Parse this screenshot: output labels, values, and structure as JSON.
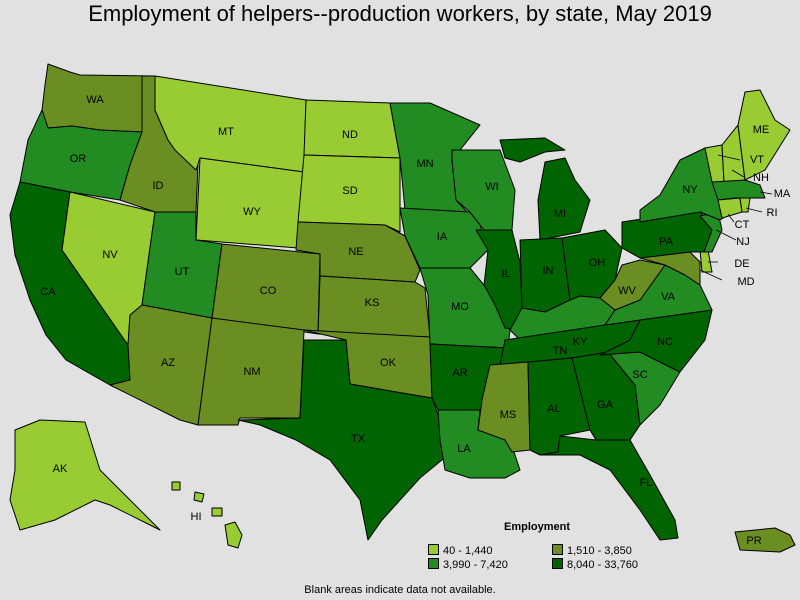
{
  "title": "Employment of helpers--production workers, by state, May 2019",
  "legend": {
    "title": "Employment",
    "classes": [
      {
        "label": "40 - 1,440",
        "color": "#99cc33"
      },
      {
        "label": "1,510 - 3,850",
        "color": "#6b8e23"
      },
      {
        "label": "3,990 - 7,420",
        "color": "#228b22"
      },
      {
        "label": "8,040 - 33,760",
        "color": "#006400"
      }
    ]
  },
  "footnote": "Blank areas indicate data not available.",
  "states": [
    {
      "code": "WA",
      "class": 1
    },
    {
      "code": "OR",
      "class": 2
    },
    {
      "code": "CA",
      "class": 3
    },
    {
      "code": "NV",
      "class": 0
    },
    {
      "code": "ID",
      "class": 1
    },
    {
      "code": "MT",
      "class": 0
    },
    {
      "code": "WY",
      "class": 0
    },
    {
      "code": "UT",
      "class": 2
    },
    {
      "code": "AZ",
      "class": 1
    },
    {
      "code": "CO",
      "class": 1
    },
    {
      "code": "NM",
      "class": 1
    },
    {
      "code": "ND",
      "class": 0
    },
    {
      "code": "SD",
      "class": 0
    },
    {
      "code": "NE",
      "class": 1
    },
    {
      "code": "KS",
      "class": 1
    },
    {
      "code": "OK",
      "class": 1
    },
    {
      "code": "TX",
      "class": 3
    },
    {
      "code": "MN",
      "class": 2
    },
    {
      "code": "IA",
      "class": 2
    },
    {
      "code": "MO",
      "class": 2
    },
    {
      "code": "AR",
      "class": 3
    },
    {
      "code": "LA",
      "class": 2
    },
    {
      "code": "WI",
      "class": 2
    },
    {
      "code": "IL",
      "class": 3
    },
    {
      "code": "MI",
      "class": 3
    },
    {
      "code": "IN",
      "class": 3
    },
    {
      "code": "OH",
      "class": 3
    },
    {
      "code": "KY",
      "class": 2
    },
    {
      "code": "TN",
      "class": 3
    },
    {
      "code": "MS",
      "class": 1
    },
    {
      "code": "AL",
      "class": 3
    },
    {
      "code": "GA",
      "class": 3
    },
    {
      "code": "FL",
      "class": 3
    },
    {
      "code": "SC",
      "class": 2
    },
    {
      "code": "NC",
      "class": 3
    },
    {
      "code": "VA",
      "class": 2
    },
    {
      "code": "WV",
      "class": 1
    },
    {
      "code": "PA",
      "class": 3
    },
    {
      "code": "NY",
      "class": 2
    },
    {
      "code": "NJ",
      "class": 2
    },
    {
      "code": "DE",
      "class": 0
    },
    {
      "code": "MD",
      "class": 1
    },
    {
      "code": "CT",
      "class": 0
    },
    {
      "code": "RI",
      "class": 0
    },
    {
      "code": "MA",
      "class": 2
    },
    {
      "code": "VT",
      "class": 0
    },
    {
      "code": "NH",
      "class": 0
    },
    {
      "code": "ME",
      "class": 0
    },
    {
      "code": "AK",
      "class": 0
    },
    {
      "code": "HI",
      "class": 0
    },
    {
      "code": "PR",
      "class": 1
    }
  ]
}
